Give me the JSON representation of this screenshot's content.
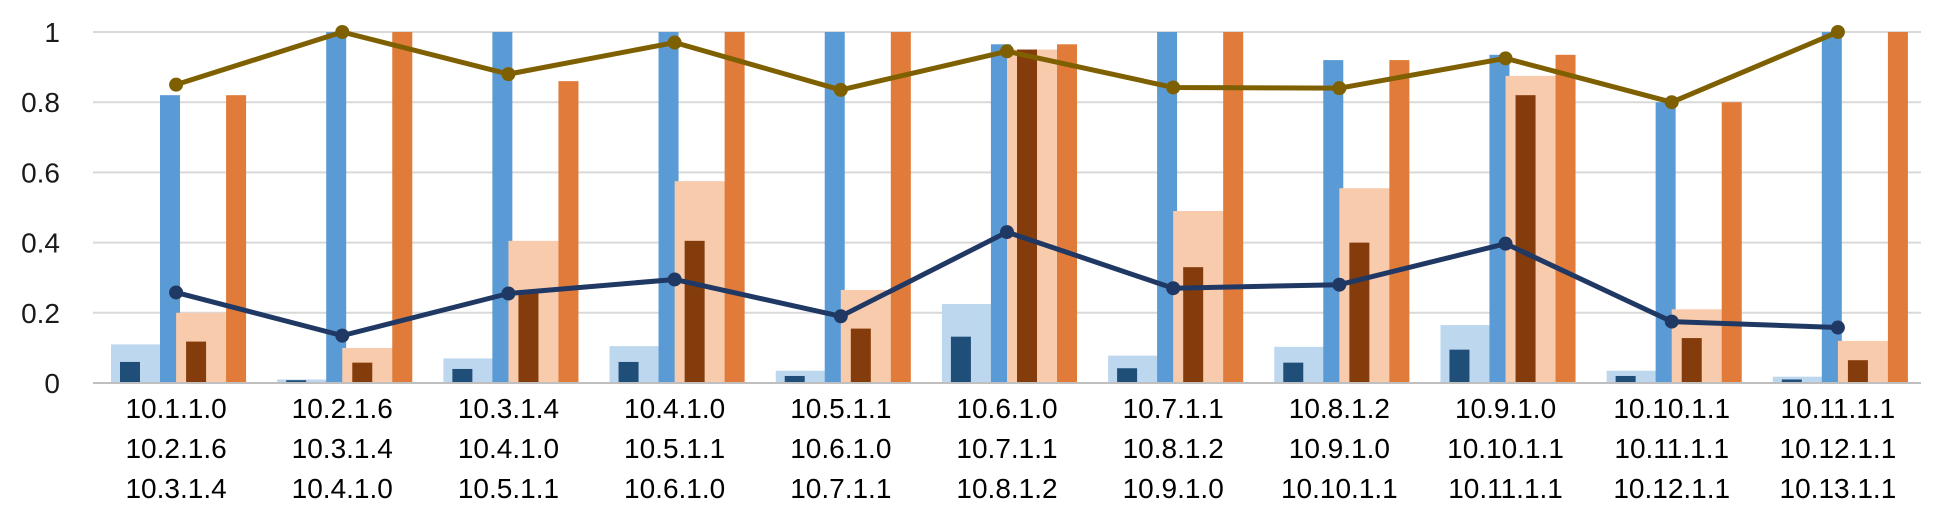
{
  "chart_data": {
    "type": "bar",
    "title": "",
    "xlabel": "",
    "ylabel": "",
    "ylim": [
      0,
      1
    ],
    "yticks": [
      {
        "value": 0,
        "label": "0"
      },
      {
        "value": 0.2,
        "label": "0.2"
      },
      {
        "value": 0.4,
        "label": "0.4"
      },
      {
        "value": 0.6,
        "label": "0.6"
      },
      {
        "value": 0.8,
        "label": "0.8"
      },
      {
        "value": 1,
        "label": "1"
      }
    ],
    "grid": true,
    "legend": "none",
    "categories": [
      [
        "10.1.1.0",
        "10.2.1.6",
        "10.3.1.4"
      ],
      [
        "10.2.1.6",
        "10.3.1.4",
        "10.4.1.0"
      ],
      [
        "10.3.1.4",
        "10.4.1.0",
        "10.5.1.1"
      ],
      [
        "10.4.1.0",
        "10.5.1.1",
        "10.6.1.0"
      ],
      [
        "10.5.1.1",
        "10.6.1.0",
        "10.7.1.1"
      ],
      [
        "10.6.1.0",
        "10.7.1.1",
        "10.8.1.2"
      ],
      [
        "10.7.1.1",
        "10.8.1.2",
        "10.9.1.0"
      ],
      [
        "10.8.1.2",
        "10.9.1.0",
        "10.10.1.1"
      ],
      [
        "10.9.1.0",
        "10.10.1.1",
        "10.11.1.1"
      ],
      [
        "10.10.1.1",
        "10.11.1.1",
        "10.12.1.1"
      ],
      [
        "10.11.1.1",
        "10.12.1.1",
        "10.13.1.1"
      ]
    ],
    "series": [
      {
        "kind": "bar",
        "group": "blue",
        "color": "#bdd7ee",
        "values": [
          0.11,
          0.01,
          0.07,
          0.105,
          0.035,
          0.225,
          0.078,
          0.103,
          0.165,
          0.035,
          0.018
        ]
      },
      {
        "kind": "bar",
        "group": "blue",
        "color": "#1f4e79",
        "values": [
          0.06,
          0.008,
          0.04,
          0.06,
          0.02,
          0.132,
          0.042,
          0.058,
          0.095,
          0.02,
          0.01
        ]
      },
      {
        "kind": "bar",
        "group": "blue",
        "color": "#5b9bd5",
        "values": [
          0.82,
          1.0,
          1.0,
          1.0,
          1.0,
          0.965,
          1.0,
          0.92,
          0.935,
          0.8,
          1.0
        ]
      },
      {
        "kind": "bar",
        "group": "orange",
        "color": "#f8cbad",
        "values": [
          0.2,
          0.1,
          0.405,
          0.575,
          0.265,
          0.95,
          0.49,
          0.555,
          0.875,
          0.21,
          0.12
        ]
      },
      {
        "kind": "bar",
        "group": "orange",
        "color": "#843c0c",
        "values": [
          0.118,
          0.058,
          0.255,
          0.405,
          0.155,
          0.95,
          0.33,
          0.4,
          0.82,
          0.128,
          0.065
        ]
      },
      {
        "kind": "bar",
        "group": "orange",
        "color": "#e07b39",
        "values": [
          0.82,
          1.0,
          0.86,
          1.0,
          1.0,
          0.965,
          1.0,
          0.92,
          0.935,
          0.8,
          1.0
        ]
      },
      {
        "kind": "line",
        "color": "#7f6000",
        "values": [
          0.85,
          1.0,
          0.88,
          0.97,
          0.835,
          0.945,
          0.842,
          0.84,
          0.925,
          0.8,
          1.0
        ]
      },
      {
        "kind": "line",
        "color": "#203864",
        "values": [
          0.258,
          0.135,
          0.255,
          0.295,
          0.19,
          0.43,
          0.27,
          0.28,
          0.397,
          0.175,
          0.158
        ]
      }
    ]
  }
}
